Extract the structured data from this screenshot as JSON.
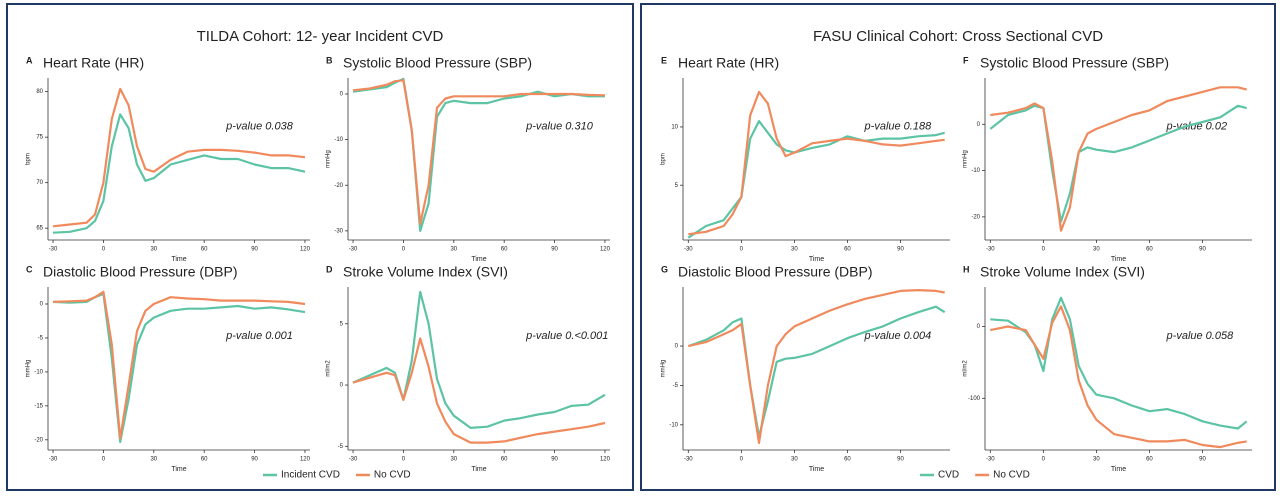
{
  "panels": [
    {
      "title": "TILDA Cohort: 12- year Incident CVD"
    },
    {
      "title": "FASU Clinical Cohort: Cross Sectional CVD"
    }
  ],
  "chart_data": [
    {
      "type": "line",
      "panel_label": "A",
      "title": "Heart Rate (HR)",
      "y_label": "bpm",
      "x_label": "Time",
      "annotation": "p-value 0.038",
      "x": [
        -30,
        -20,
        -10,
        -5,
        0,
        5,
        10,
        15,
        20,
        25,
        30,
        40,
        50,
        60,
        70,
        80,
        90,
        100,
        110,
        120
      ],
      "xlim": [
        -33,
        123
      ],
      "xticks": [
        -30,
        0,
        30,
        60,
        90,
        120
      ],
      "ylim": [
        63.7,
        81.5
      ],
      "yticks": [
        65,
        70,
        75,
        80
      ],
      "series": [
        {
          "name": "Incident CVD",
          "color": "#5cc4a4",
          "values": [
            64.5,
            64.6,
            65,
            65.8,
            68,
            74,
            77.5,
            76,
            72,
            70.2,
            70.5,
            72,
            72.5,
            73,
            72.6,
            72.6,
            72,
            71.6,
            71.6,
            71.2
          ]
        },
        {
          "name": "No CVD",
          "color": "#f08a5d",
          "values": [
            65.2,
            65.4,
            65.6,
            66.5,
            70,
            77,
            80.3,
            78.5,
            74,
            71.5,
            71.2,
            72.5,
            73.4,
            73.6,
            73.6,
            73.5,
            73.3,
            73,
            73,
            72.8
          ]
        }
      ]
    },
    {
      "type": "line",
      "panel_label": "B",
      "title": "Systolic Blood Pressure (SBP)",
      "y_label": "mmHg",
      "x_label": "Time",
      "annotation": "p-value 0.310",
      "x": [
        -30,
        -20,
        -10,
        -5,
        0,
        5,
        10,
        15,
        20,
        25,
        30,
        40,
        50,
        60,
        70,
        80,
        90,
        100,
        110,
        120
      ],
      "xlim": [
        -33,
        123
      ],
      "xticks": [
        -30,
        0,
        30,
        60,
        90,
        120
      ],
      "ylim": [
        -32,
        3.5
      ],
      "yticks": [
        -30,
        -20,
        -10,
        0
      ],
      "series": [
        {
          "name": "Incident CVD",
          "color": "#5cc4a4",
          "values": [
            0.5,
            1,
            1.5,
            2.5,
            3.3,
            -8,
            -30,
            -24,
            -5,
            -2,
            -1.5,
            -2,
            -2,
            -1,
            -0.5,
            0.5,
            -0.5,
            0,
            -0.5,
            -0.5
          ]
        },
        {
          "name": "No CVD",
          "color": "#f08a5d",
          "values": [
            0.8,
            1.2,
            2,
            2.8,
            3,
            -8,
            -28.5,
            -20,
            -3,
            -1,
            -0.5,
            -0.5,
            -0.5,
            -0.5,
            0,
            0,
            0,
            0,
            -0.2,
            -0.3
          ]
        }
      ]
    },
    {
      "type": "line",
      "panel_label": "C",
      "title": "Diastolic Blood Pressure (DBP)",
      "y_label": "mmHg",
      "x_label": "Time",
      "annotation": "p-value 0.001",
      "x": [
        -30,
        -20,
        -10,
        -5,
        0,
        5,
        10,
        15,
        20,
        25,
        30,
        40,
        50,
        60,
        70,
        80,
        90,
        100,
        110,
        120
      ],
      "xlim": [
        -33,
        123
      ],
      "xticks": [
        -30,
        0,
        30,
        60,
        90,
        120
      ],
      "ylim": [
        -21.5,
        2.5
      ],
      "yticks": [
        -20,
        -15,
        -10,
        -5,
        0
      ],
      "series": [
        {
          "name": "Incident CVD",
          "color": "#5cc4a4",
          "values": [
            0.3,
            0.2,
            0.3,
            1,
            1.5,
            -8,
            -20.3,
            -14,
            -6,
            -3,
            -2,
            -1,
            -0.7,
            -0.7,
            -0.5,
            -0.3,
            -0.7,
            -0.5,
            -0.8,
            -1.2
          ]
        },
        {
          "name": "No CVD",
          "color": "#f08a5d",
          "values": [
            0.3,
            0.4,
            0.5,
            1,
            1.8,
            -6,
            -19.8,
            -12,
            -4,
            -1,
            0,
            1,
            0.8,
            0.7,
            0.5,
            0.5,
            0.5,
            0.4,
            0.3,
            0
          ]
        }
      ]
    },
    {
      "type": "line",
      "panel_label": "D",
      "title": "Stroke Volume Index (SVI)",
      "y_label": "ml/m2",
      "x_label": "Time",
      "annotation": "p-value 0.<0.001",
      "x": [
        -30,
        -20,
        -10,
        -5,
        0,
        5,
        10,
        15,
        20,
        25,
        30,
        40,
        50,
        60,
        70,
        80,
        90,
        100,
        110,
        120
      ],
      "xlim": [
        -33,
        123
      ],
      "xticks": [
        -30,
        0,
        30,
        60,
        90,
        120
      ],
      "ylim": [
        -5.3,
        8
      ],
      "yticks": [
        -5,
        0,
        5
      ],
      "series": [
        {
          "name": "Incident CVD",
          "color": "#5cc4a4",
          "values": [
            0.2,
            0.8,
            1.4,
            1,
            -1.2,
            2,
            7.6,
            5,
            0.5,
            -1.5,
            -2.5,
            -3.5,
            -3.4,
            -2.9,
            -2.7,
            -2.4,
            -2.2,
            -1.7,
            -1.6,
            -0.8
          ]
        },
        {
          "name": "No CVD",
          "color": "#f08a5d",
          "values": [
            0.2,
            0.6,
            1,
            0.8,
            -1.2,
            1,
            3.8,
            1.5,
            -1.5,
            -3,
            -4,
            -4.7,
            -4.7,
            -4.6,
            -4.3,
            -4,
            -3.8,
            -3.6,
            -3.4,
            -3.1
          ]
        }
      ]
    },
    {
      "type": "line",
      "panel_label": "E",
      "title": "Heart Rate (HR)",
      "y_label": "bpm",
      "x_label": "Time",
      "annotation": "p-value 0.188",
      "x": [
        -30,
        -20,
        -10,
        -5,
        0,
        5,
        10,
        15,
        20,
        25,
        30,
        40,
        50,
        60,
        70,
        80,
        90,
        100,
        110,
        115
      ],
      "xlim": [
        -33,
        118
      ],
      "xticks": [
        -30,
        0,
        30,
        60,
        90
      ],
      "ylim": [
        0.3,
        14.2
      ],
      "yticks": [
        5,
        10
      ],
      "series": [
        {
          "name": "CVD",
          "color": "#5cc4a4",
          "values": [
            0.5,
            1.5,
            2,
            3,
            4,
            9,
            10.5,
            9.5,
            8.5,
            8,
            7.8,
            8.2,
            8.5,
            9.2,
            8.8,
            9,
            9,
            9.2,
            9.3,
            9.5
          ]
        },
        {
          "name": "No CVD",
          "color": "#f08a5d",
          "values": [
            0.8,
            1,
            1.5,
            2.5,
            4,
            11,
            13,
            12,
            9,
            7.5,
            7.8,
            8.6,
            8.8,
            9,
            8.8,
            8.5,
            8.4,
            8.6,
            8.8,
            8.9
          ]
        }
      ]
    },
    {
      "type": "line",
      "panel_label": "F",
      "title": "Systolic Blood Pressure (SBP)",
      "y_label": "mmHg",
      "x_label": "Time",
      "annotation": "p-value 0.02",
      "x": [
        -30,
        -20,
        -10,
        -5,
        0,
        5,
        10,
        15,
        20,
        25,
        30,
        40,
        50,
        60,
        70,
        80,
        90,
        100,
        110,
        115
      ],
      "xlim": [
        -33,
        118
      ],
      "xticks": [
        -30,
        0,
        30,
        60,
        90
      ],
      "ylim": [
        -25,
        10
      ],
      "yticks": [
        -20,
        -10,
        0
      ],
      "series": [
        {
          "name": "CVD",
          "color": "#5cc4a4",
          "values": [
            -1,
            2,
            3,
            4,
            3.5,
            -10,
            -21,
            -15,
            -6,
            -5,
            -5.5,
            -6,
            -5,
            -3.5,
            -2,
            -0.5,
            0.5,
            1.5,
            4,
            3.5
          ]
        },
        {
          "name": "No CVD",
          "color": "#f08a5d",
          "values": [
            2,
            2.5,
            3.5,
            4.5,
            3.5,
            -8,
            -23,
            -18,
            -6,
            -2,
            -1,
            0.5,
            2,
            3,
            5,
            6,
            7,
            8,
            8,
            7.5
          ]
        }
      ]
    },
    {
      "type": "line",
      "panel_label": "G",
      "title": "Diastolic Blood Pressure (DBP)",
      "y_label": "mmHg",
      "x_label": "Time",
      "annotation": "p-value 0.004",
      "x": [
        -30,
        -20,
        -10,
        -5,
        0,
        5,
        10,
        15,
        20,
        25,
        30,
        40,
        50,
        60,
        70,
        80,
        90,
        100,
        110,
        115
      ],
      "xlim": [
        -33,
        118
      ],
      "xticks": [
        -30,
        0,
        30,
        60,
        90
      ],
      "ylim": [
        -13.2,
        7.5
      ],
      "yticks": [
        -10,
        -5,
        0
      ],
      "series": [
        {
          "name": "CVD",
          "color": "#5cc4a4",
          "values": [
            0,
            0.8,
            2,
            3,
            3.5,
            -5,
            -11.5,
            -7,
            -2,
            -1.6,
            -1.5,
            -1,
            0,
            1,
            1.8,
            2.5,
            3.5,
            4.3,
            5,
            4.3
          ]
        },
        {
          "name": "No CVD",
          "color": "#f08a5d",
          "values": [
            0,
            0.5,
            1.5,
            2,
            2.8,
            -5,
            -12.3,
            -5,
            0,
            1.5,
            2.5,
            3.5,
            4.5,
            5.3,
            6,
            6.5,
            7,
            7.1,
            7,
            6.8
          ]
        }
      ]
    },
    {
      "type": "line",
      "panel_label": "H",
      "title": "Stroke Volume Index (SVI)",
      "y_label": "ml/m2",
      "x_label": "Time",
      "annotation": "p-value 0.058",
      "x": [
        -30,
        -20,
        -10,
        -5,
        0,
        5,
        10,
        15,
        20,
        25,
        30,
        40,
        50,
        60,
        70,
        80,
        90,
        100,
        110,
        115
      ],
      "xlim": [
        -33,
        118
      ],
      "xticks": [
        -30,
        0,
        30,
        60,
        90
      ],
      "ylim": [
        -172,
        55
      ],
      "yticks": [
        -100,
        0
      ],
      "series": [
        {
          "name": "CVD",
          "color": "#5cc4a4",
          "values": [
            10,
            8,
            -8,
            -25,
            -62,
            10,
            40,
            10,
            -55,
            -80,
            -95,
            -100,
            -110,
            -118,
            -115,
            -122,
            -132,
            -138,
            -142,
            -132
          ]
        },
        {
          "name": "No CVD",
          "color": "#f08a5d",
          "values": [
            -5,
            0,
            -5,
            -25,
            -45,
            5,
            28,
            -5,
            -75,
            -110,
            -130,
            -150,
            -155,
            -160,
            -160,
            -158,
            -165,
            -168,
            -162,
            -160
          ]
        }
      ]
    }
  ]
}
